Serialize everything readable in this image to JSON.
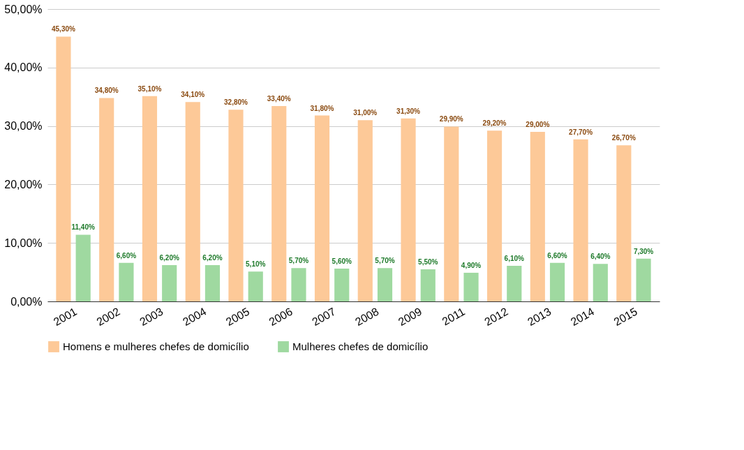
{
  "chart_data": {
    "type": "bar",
    "categories": [
      "2001",
      "2002",
      "2003",
      "2004",
      "2005",
      "2006",
      "2007",
      "2008",
      "2009",
      "2011",
      "2012",
      "2013",
      "2014",
      "2015"
    ],
    "series": [
      {
        "name": "Homens e mulheres chefes de domicílio",
        "color": "#fdc998",
        "values": [
          45.3,
          34.8,
          35.1,
          34.1,
          32.8,
          33.4,
          31.8,
          31.0,
          31.3,
          29.9,
          29.2,
          29.0,
          27.7,
          26.7
        ],
        "value_labels": [
          "45,30%",
          "34,80%",
          "35,10%",
          "34,10%",
          "32,80%",
          "33,40%",
          "31,80%",
          "31,00%",
          "31,30%",
          "29,90%",
          "29,20%",
          "29,00%",
          "27,70%",
          "26,70%"
        ]
      },
      {
        "name": "Mulheres chefes de domicílio",
        "color": "#9fd9a0",
        "values": [
          11.4,
          6.6,
          6.2,
          6.2,
          5.1,
          5.7,
          5.6,
          5.7,
          5.5,
          4.9,
          6.1,
          6.6,
          6.4,
          7.3
        ],
        "value_labels": [
          "11,40%",
          "6,60%",
          "6,20%",
          "6,20%",
          "5,10%",
          "5,70%",
          "5,60%",
          "5,70%",
          "5,50%",
          "4,90%",
          "6,10%",
          "6,60%",
          "6,40%",
          "7,30%"
        ]
      }
    ],
    "ylim": [
      0,
      50
    ],
    "yticks": [
      {
        "value": 0,
        "label": "0,00%"
      },
      {
        "value": 10,
        "label": "10,00%"
      },
      {
        "value": 20,
        "label": "20,00%"
      },
      {
        "value": 30,
        "label": "30,00%"
      },
      {
        "value": 40,
        "label": "40,00%"
      },
      {
        "value": 50,
        "label": "50,00%"
      }
    ],
    "grid": "y",
    "legend": "bottom"
  }
}
